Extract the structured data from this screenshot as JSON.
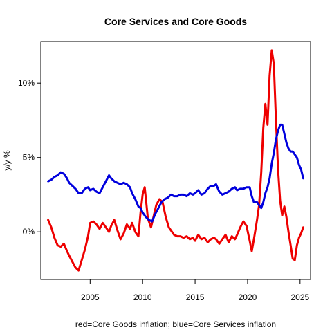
{
  "chart_data": {
    "type": "line",
    "title": "Core Services and Core Goods",
    "xlabel": "red=Core Goods inflation; blue=Core Services inflation",
    "ylabel": "y/y %",
    "xlim": [
      2000.3,
      2026.0
    ],
    "ylim": [
      -3.2,
      12.8
    ],
    "x_ticks": [
      2005,
      2010,
      2015,
      2020,
      2025
    ],
    "y_ticks": [
      0,
      5,
      10
    ],
    "y_tick_labels": [
      "0%",
      "5%",
      "10%"
    ],
    "grid": false,
    "series": [
      {
        "color": "#ee0000",
        "x": [
          2001.0,
          2001.3,
          2001.6,
          2001.9,
          2002.2,
          2002.5,
          2002.8,
          2003.0,
          2003.3,
          2003.6,
          2003.9,
          2004.2,
          2004.5,
          2004.8,
          2005.0,
          2005.3,
          2005.6,
          2005.9,
          2006.2,
          2006.5,
          2006.8,
          2007.0,
          2007.3,
          2007.6,
          2007.9,
          2008.2,
          2008.5,
          2008.8,
          2009.0,
          2009.3,
          2009.6,
          2009.8,
          2010.0,
          2010.2,
          2010.5,
          2010.8,
          2011.0,
          2011.3,
          2011.6,
          2011.9,
          2012.2,
          2012.5,
          2012.8,
          2013.0,
          2013.3,
          2013.6,
          2013.9,
          2014.2,
          2014.5,
          2014.8,
          2015.0,
          2015.3,
          2015.6,
          2015.9,
          2016.2,
          2016.5,
          2016.8,
          2017.0,
          2017.3,
          2017.6,
          2017.9,
          2018.2,
          2018.5,
          2018.8,
          2019.0,
          2019.3,
          2019.6,
          2019.9,
          2020.2,
          2020.4,
          2020.6,
          2020.9,
          2021.1,
          2021.3,
          2021.5,
          2021.7,
          2021.9,
          2022.1,
          2022.3,
          2022.5,
          2022.7,
          2022.9,
          2023.1,
          2023.3,
          2023.5,
          2023.7,
          2023.9,
          2024.1,
          2024.3,
          2024.5,
          2024.7,
          2024.9,
          2025.1,
          2025.3
        ],
        "values": [
          0.8,
          0.3,
          -0.4,
          -0.9,
          -1.0,
          -0.8,
          -1.3,
          -1.6,
          -2.0,
          -2.4,
          -2.6,
          -1.9,
          -1.2,
          -0.3,
          0.6,
          0.7,
          0.5,
          0.2,
          0.6,
          0.3,
          0.0,
          0.4,
          0.8,
          0.1,
          -0.5,
          -0.1,
          0.5,
          0.2,
          0.6,
          0.0,
          -0.3,
          1.3,
          2.5,
          3.0,
          0.9,
          0.3,
          0.9,
          1.8,
          2.2,
          2.0,
          1.0,
          0.3,
          0.0,
          -0.2,
          -0.3,
          -0.3,
          -0.4,
          -0.3,
          -0.5,
          -0.4,
          -0.6,
          -0.2,
          -0.5,
          -0.4,
          -0.7,
          -0.5,
          -0.4,
          -0.5,
          -0.8,
          -0.5,
          -0.2,
          -0.7,
          -0.3,
          -0.5,
          -0.2,
          0.3,
          0.7,
          0.4,
          -0.6,
          -1.3,
          -0.5,
          0.8,
          1.8,
          4.0,
          7.0,
          8.6,
          7.2,
          10.5,
          12.2,
          11.3,
          7.6,
          4.2,
          2.1,
          1.1,
          1.7,
          1.0,
          0.0,
          -0.9,
          -1.8,
          -1.9,
          -0.9,
          -0.4,
          -0.1,
          0.3
        ]
      },
      {
        "color": "#0000dd",
        "x": [
          2001.0,
          2001.3,
          2001.6,
          2001.9,
          2002.2,
          2002.5,
          2002.8,
          2003.0,
          2003.3,
          2003.6,
          2003.9,
          2004.2,
          2004.5,
          2004.8,
          2005.0,
          2005.3,
          2005.6,
          2005.9,
          2006.2,
          2006.5,
          2006.8,
          2007.0,
          2007.3,
          2007.6,
          2007.9,
          2008.2,
          2008.5,
          2008.8,
          2009.0,
          2009.3,
          2009.6,
          2009.8,
          2010.0,
          2010.3,
          2010.6,
          2010.9,
          2011.2,
          2011.5,
          2011.8,
          2012.1,
          2012.4,
          2012.7,
          2013.0,
          2013.3,
          2013.6,
          2013.9,
          2014.2,
          2014.5,
          2014.8,
          2015.0,
          2015.3,
          2015.6,
          2015.9,
          2016.2,
          2016.5,
          2016.8,
          2017.0,
          2017.3,
          2017.6,
          2017.9,
          2018.2,
          2018.5,
          2018.8,
          2019.0,
          2019.3,
          2019.6,
          2019.9,
          2020.2,
          2020.4,
          2020.6,
          2020.9,
          2021.1,
          2021.3,
          2021.5,
          2021.7,
          2021.9,
          2022.1,
          2022.3,
          2022.5,
          2022.7,
          2022.9,
          2023.1,
          2023.3,
          2023.5,
          2023.7,
          2023.9,
          2024.1,
          2024.3,
          2024.5,
          2024.7,
          2024.9,
          2025.1,
          2025.3
        ],
        "values": [
          3.4,
          3.5,
          3.7,
          3.8,
          4.0,
          3.9,
          3.6,
          3.3,
          3.1,
          2.9,
          2.6,
          2.6,
          2.9,
          3.0,
          2.8,
          2.9,
          2.7,
          2.6,
          3.0,
          3.4,
          3.8,
          3.6,
          3.4,
          3.3,
          3.2,
          3.3,
          3.2,
          3.0,
          2.6,
          2.2,
          1.7,
          1.6,
          1.3,
          1.0,
          0.8,
          0.7,
          1.2,
          1.6,
          2.0,
          2.2,
          2.3,
          2.5,
          2.4,
          2.4,
          2.5,
          2.5,
          2.4,
          2.6,
          2.5,
          2.6,
          2.8,
          2.5,
          2.6,
          2.9,
          3.1,
          3.1,
          3.2,
          2.7,
          2.5,
          2.6,
          2.7,
          2.9,
          3.0,
          2.8,
          2.9,
          2.9,
          3.0,
          3.0,
          2.4,
          2.0,
          2.0,
          1.8,
          1.6,
          2.0,
          2.6,
          3.0,
          3.6,
          4.6,
          5.3,
          6.2,
          6.8,
          7.2,
          7.2,
          6.6,
          6.0,
          5.6,
          5.4,
          5.4,
          5.2,
          5.0,
          4.5,
          4.2,
          3.6
        ]
      }
    ]
  }
}
